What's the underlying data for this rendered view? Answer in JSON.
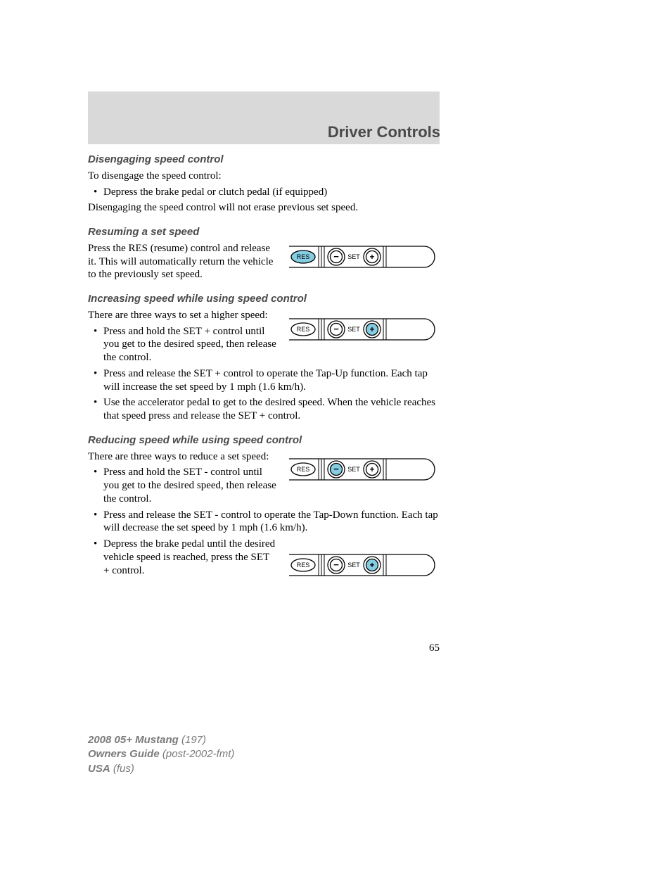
{
  "header": {
    "title": "Driver Controls"
  },
  "sections": {
    "disengage": {
      "heading": "Disengaging speed control",
      "intro": "To disengage the speed control:",
      "bullet1": "Depress the brake pedal or clutch pedal (if equipped)",
      "note": "Disengaging the speed control will not erase previous set speed."
    },
    "resume": {
      "heading": "Resuming a set speed",
      "para": "Press the RES (resume) control and release it. This will automatically return the vehicle to the previously set speed."
    },
    "increase": {
      "heading": "Increasing speed while using speed control",
      "intro": "There are three ways to set a higher speed:",
      "b1": "Press and hold the SET + control until you get to the desired speed, then release the control.",
      "b2": "Press and release the SET + control to operate the Tap-Up function. Each tap will increase the set speed by 1 mph (1.6 km/h).",
      "b3": "Use the accelerator pedal to get to the desired speed. When the vehicle reaches that speed press and release the SET + control."
    },
    "reduce": {
      "heading": "Reducing speed while using speed control",
      "intro": "There are three ways to reduce a set speed:",
      "b1": "Press and hold the SET - control until you get to the desired speed, then release the control.",
      "b2": "Press and release the SET - control to operate the Tap-Down function. Each tap will decrease the set speed by 1 mph (1.6 km/h).",
      "b3": "Depress the brake pedal until the desired vehicle speed is reached, press the SET + control."
    }
  },
  "diagram": {
    "labels": {
      "res": "RES",
      "set": "SET",
      "minus": "−",
      "plus": "+"
    },
    "colors": {
      "highlight_fill": "#85cde3",
      "stroke": "#000000",
      "bg": "#ffffff"
    },
    "diagrams": [
      {
        "id": "d1",
        "highlight": "res"
      },
      {
        "id": "d2",
        "highlight": "plus"
      },
      {
        "id": "d3",
        "highlight": "minus"
      },
      {
        "id": "d4",
        "highlight": "plus"
      }
    ]
  },
  "page_number": "65",
  "footer": {
    "l1a": "2008 05+ Mustang",
    "l1b": "(197)",
    "l2a": "Owners Guide",
    "l2b": "(post-2002-fmt)",
    "l3a": "USA",
    "l3b": "(fus)"
  }
}
